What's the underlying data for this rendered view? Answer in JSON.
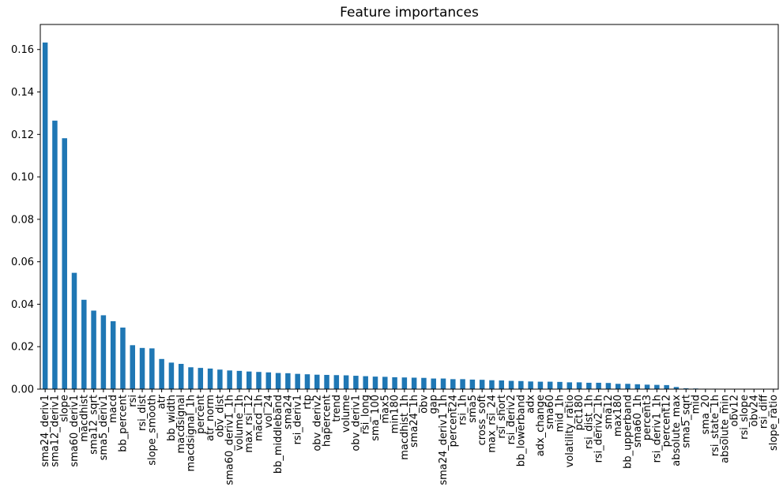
{
  "chart_data": {
    "type": "bar",
    "title": "Feature importances",
    "xlabel": "",
    "ylabel": "",
    "grid": false,
    "legend": "none",
    "bar_color": "#1f77b4",
    "text_color": "#000000",
    "background_color": "#ffffff",
    "ylim": [
      0,
      0.1718
    ],
    "yticks": [
      0.0,
      0.02,
      0.04,
      0.06,
      0.08,
      0.1,
      0.12,
      0.14,
      0.16
    ],
    "ytick_labels": [
      "0.00",
      "0.02",
      "0.04",
      "0.06",
      "0.08",
      "0.10",
      "0.12",
      "0.14",
      "0.16"
    ],
    "categories": [
      "sma24_deriv1",
      "sma12_deriv1",
      "slope",
      "sma60_deriv1",
      "macdhist",
      "sma12_sqrt",
      "sma5_deriv1",
      "macd",
      "bb_percent",
      "rsi",
      "rsi_dist",
      "slope_smooth",
      "atr",
      "bb_width",
      "macdsignal",
      "macdsignal_1h",
      "percent",
      "atr_norm",
      "obv_dist",
      "sma60_deriv1_1h",
      "volume_1h",
      "max_rsi_12",
      "macd_1h",
      "vol_24",
      "bb_middleband",
      "sma24",
      "rsi_deriv1",
      "rtp",
      "obv_deriv2",
      "hapercent",
      "trend",
      "volume",
      "obv_deriv1",
      "rsi_long",
      "sma_100",
      "max5",
      "min180",
      "macdhist_1h",
      "sma24_1h",
      "obv",
      "gap",
      "sma24_deriv1_1h",
      "percent24",
      "rsi_1h",
      "sma5",
      "cross_soft",
      "max_rsi_24",
      "rsi_short",
      "rsi_deriv2",
      "bb_lowerband",
      "adx",
      "adx_change",
      "sma60",
      "mid_1h",
      "volatility_ratio",
      "pct180",
      "rsi_dist_1h",
      "rsi_deriv2_1h",
      "sma12",
      "max180",
      "bb_upperband",
      "sma60_1h",
      "percent3",
      "rsi_deriv1_1h",
      "percent12",
      "absolute_max",
      "sma5_sqrt",
      "mid",
      "sma_20",
      "rsi_state_1h",
      "absolute_min",
      "obv12",
      "rsi_slope",
      "obv24",
      "rsi_diff",
      "slope_ratio"
    ],
    "values": [
      0.1633,
      0.1265,
      0.1182,
      0.0548,
      0.0421,
      0.037,
      0.0348,
      0.032,
      0.029,
      0.0207,
      0.0194,
      0.0192,
      0.0142,
      0.0125,
      0.0119,
      0.0103,
      0.01,
      0.0097,
      0.0092,
      0.0088,
      0.0086,
      0.0083,
      0.0081,
      0.0079,
      0.0076,
      0.0075,
      0.0072,
      0.007,
      0.0068,
      0.0067,
      0.0066,
      0.0065,
      0.0063,
      0.0061,
      0.0059,
      0.0058,
      0.0056,
      0.0055,
      0.0054,
      0.0053,
      0.005,
      0.005,
      0.0047,
      0.0047,
      0.0045,
      0.0044,
      0.0042,
      0.0041,
      0.0039,
      0.0038,
      0.0036,
      0.0035,
      0.0035,
      0.0034,
      0.0032,
      0.0032,
      0.003,
      0.003,
      0.0029,
      0.0025,
      0.0025,
      0.0023,
      0.0021,
      0.002,
      0.0019,
      0.001,
      0.0004,
      0.0003,
      0.0002,
      0.0002,
      0.0001,
      0.0001,
      0.0001,
      0.0001,
      0.0,
      0.0
    ]
  }
}
